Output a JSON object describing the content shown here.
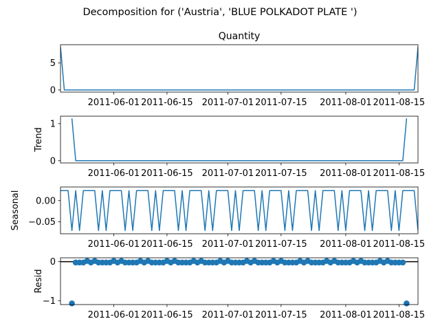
{
  "title": "Decomposition for ('Austria', 'BLUE POLKADOT PLATE ')",
  "chart_data": [
    {
      "type": "line",
      "title": "Quantity",
      "ylabel": "",
      "xlim": [
        "2011-05-18",
        "2011-08-20"
      ],
      "ylim": [
        -0.4,
        8.4
      ],
      "yticks": [
        0,
        5
      ],
      "xticks": [
        "2011-06-01",
        "2011-06-15",
        "2011-07-01",
        "2011-07-15",
        "2011-08-01",
        "2011-08-15"
      ],
      "series": [
        {
          "x": [
            "2011-05-18",
            "2011-05-19",
            "2011-08-19",
            "2011-08-20"
          ],
          "values": [
            8,
            0,
            0,
            8
          ]
        }
      ]
    },
    {
      "type": "line",
      "title": "",
      "ylabel": "Trend",
      "xlim": [
        "2011-05-18",
        "2011-08-20"
      ],
      "ylim": [
        -0.06,
        1.2
      ],
      "yticks": [
        0,
        1
      ],
      "xticks": [
        "2011-06-01",
        "2011-06-15",
        "2011-07-01",
        "2011-07-15",
        "2011-08-01",
        "2011-08-15"
      ],
      "series": [
        {
          "x": [
            "2011-05-21",
            "2011-05-22",
            "2011-08-16",
            "2011-08-17"
          ],
          "values": [
            1.14,
            0,
            0,
            1.14
          ]
        }
      ]
    },
    {
      "type": "line",
      "title": "",
      "ylabel": "Seasonal",
      "xlim": [
        "2011-05-18",
        "2011-08-20"
      ],
      "ylim": [
        -0.078,
        0.032
      ],
      "yticks": [
        0.0,
        -0.05
      ],
      "ytick_labels": [
        "0.00",
        "−0.05"
      ],
      "xticks": [
        "2011-06-01",
        "2011-06-15",
        "2011-07-01",
        "2011-07-15",
        "2011-08-01",
        "2011-08-15"
      ],
      "period": 7,
      "season_start": "2011-05-18",
      "pattern": [
        0.0235,
        0.0235,
        0.0235,
        -0.0705,
        0.0235,
        -0.0705,
        0.0235
      ]
    },
    {
      "type": "scatter",
      "title": "",
      "ylabel": "Resid",
      "xlim": [
        "2011-05-18",
        "2011-08-20"
      ],
      "ylim": [
        -1.1,
        0.1
      ],
      "yticks": [
        0,
        -1
      ],
      "ytick_labels": [
        "0",
        "−1"
      ],
      "xticks": [
        "2011-06-01",
        "2011-06-15",
        "2011-07-01",
        "2011-07-15",
        "2011-08-01",
        "2011-08-15"
      ],
      "zero_line": 0,
      "x_start": "2011-05-21",
      "x_end": "2011-08-17",
      "values_note": "residuals are ~0 except first and last points",
      "endpoint_value": -1.07,
      "resid_pattern": [
        -0.02,
        -0.02,
        -0.02,
        0.02,
        -0.02,
        0.02,
        -0.02
      ],
      "resid_start": "2011-05-22",
      "resid_end": "2011-08-16"
    }
  ]
}
